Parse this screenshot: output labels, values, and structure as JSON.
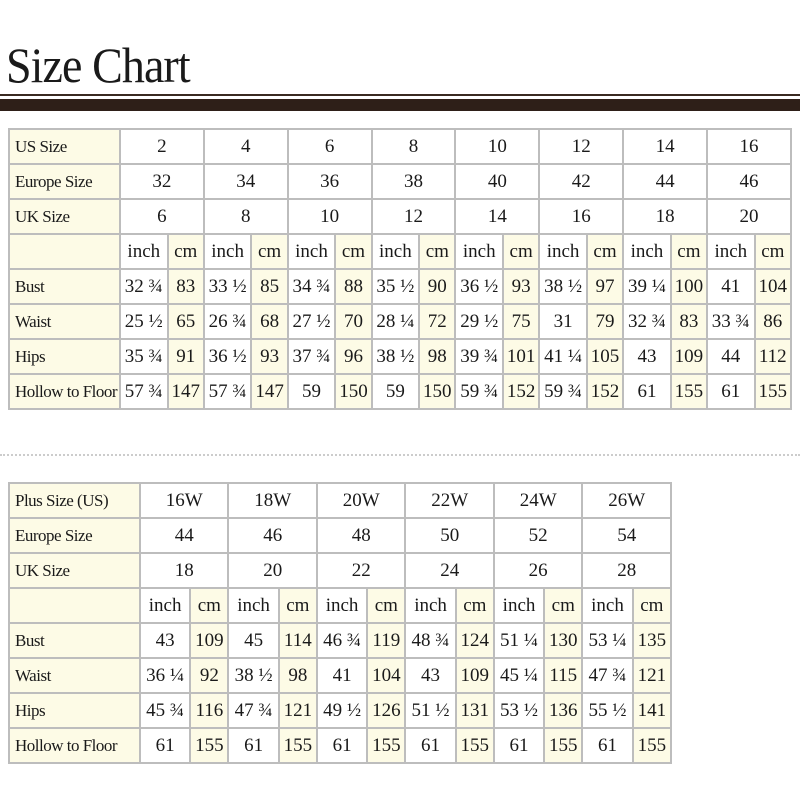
{
  "title": "Size Chart",
  "regular": {
    "size_rows": [
      {
        "label": "US Size",
        "values": [
          "2",
          "4",
          "6",
          "8",
          "10",
          "12",
          "14",
          "16"
        ]
      },
      {
        "label": "Europe Size",
        "values": [
          "32",
          "34",
          "36",
          "38",
          "40",
          "42",
          "44",
          "46"
        ]
      },
      {
        "label": "UK Size",
        "values": [
          "6",
          "8",
          "10",
          "12",
          "14",
          "16",
          "18",
          "20"
        ]
      }
    ],
    "unit_labels": [
      "inch",
      "cm"
    ],
    "measure_rows": [
      {
        "label": "Bust",
        "values": [
          "32 ¾",
          "83",
          "33 ½",
          "85",
          "34 ¾",
          "88",
          "35 ½",
          "90",
          "36 ½",
          "93",
          "38 ½",
          "97",
          "39 ¼",
          "100",
          "41",
          "104"
        ]
      },
      {
        "label": "Waist",
        "values": [
          "25 ½",
          "65",
          "26 ¾",
          "68",
          "27 ½",
          "70",
          "28 ¼",
          "72",
          "29 ½",
          "75",
          "31",
          "79",
          "32 ¾",
          "83",
          "33 ¾",
          "86"
        ]
      },
      {
        "label": "Hips",
        "values": [
          "35 ¾",
          "91",
          "36 ½",
          "93",
          "37 ¾",
          "96",
          "38 ½",
          "98",
          "39 ¾",
          "101",
          "41 ¼",
          "105",
          "43",
          "109",
          "44",
          "112"
        ]
      },
      {
        "label": "Hollow to Floor",
        "values": [
          "57 ¾",
          "147",
          "57 ¾",
          "147",
          "59",
          "150",
          "59",
          "150",
          "59 ¾",
          "152",
          "59 ¾",
          "152",
          "61",
          "155",
          "61",
          "155"
        ]
      }
    ]
  },
  "plus": {
    "size_rows": [
      {
        "label": "Plus Size (US)",
        "values": [
          "16W",
          "18W",
          "20W",
          "22W",
          "24W",
          "26W"
        ]
      },
      {
        "label": "Europe Size",
        "values": [
          "44",
          "46",
          "48",
          "50",
          "52",
          "54"
        ]
      },
      {
        "label": "UK Size",
        "values": [
          "18",
          "20",
          "22",
          "24",
          "26",
          "28"
        ]
      }
    ],
    "unit_labels": [
      "inch",
      "cm"
    ],
    "measure_rows": [
      {
        "label": "Bust",
        "values": [
          "43",
          "109",
          "45",
          "114",
          "46 ¾",
          "119",
          "48 ¾",
          "124",
          "51 ¼",
          "130",
          "53 ¼",
          "135"
        ]
      },
      {
        "label": "Waist",
        "values": [
          "36 ¼",
          "92",
          "38 ½",
          "98",
          "41",
          "104",
          "43",
          "109",
          "45 ¼",
          "115",
          "47 ¾",
          "121"
        ]
      },
      {
        "label": "Hips",
        "values": [
          "45 ¾",
          "116",
          "47 ¾",
          "121",
          "49 ½",
          "126",
          "51 ½",
          "131",
          "53 ½",
          "136",
          "55 ½",
          "141"
        ]
      },
      {
        "label": "Hollow to Floor",
        "values": [
          "61",
          "155",
          "61",
          "155",
          "61",
          "155",
          "61",
          "155",
          "61",
          "155",
          "61",
          "155"
        ]
      }
    ]
  },
  "colors": {
    "cream": "#fdfbe6",
    "bar": "#2e1f18",
    "border": "#bdbdbd"
  }
}
